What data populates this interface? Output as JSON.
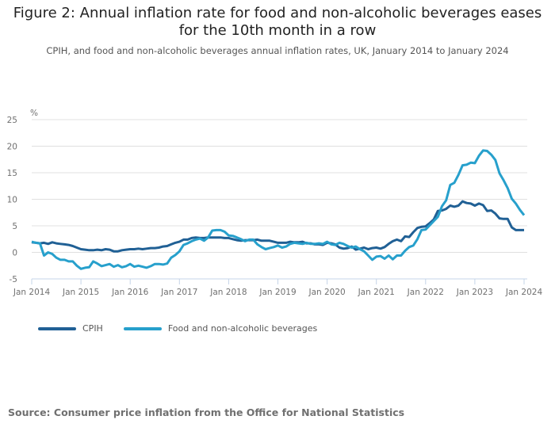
{
  "title_lines": [
    "Figure 2: Annual inflation rate for food and non-alcoholic beverages eases",
    "for the 10th month in a row"
  ],
  "subtitle": "CPIH, and food and non-alcoholic beverages annual inflation rates, UK, January 2014 to January 2024",
  "source": "Source: Consumer price inflation from the Office for National Statistics",
  "chart_data": {
    "type": "line",
    "title": "Figure 2: Annual inflation rate for food and non-alcoholic beverages eases for the 10th month in a row",
    "ylabel": "%",
    "xlabel": "",
    "ylim": [
      -5,
      25
    ],
    "yticks": [
      "25",
      "20",
      "15",
      "10",
      "5",
      "0",
      "-5"
    ],
    "ytick_values": [
      25,
      20,
      15,
      10,
      5,
      0,
      -5
    ],
    "xticks": [
      "Jan 2014",
      "Jan 2015",
      "Jan 2016",
      "Jan 2017",
      "Jan 2018",
      "Jan 2019",
      "Jan 2020",
      "Jan 2021",
      "Jan 2022",
      "Jan 2023",
      "Jan 2024"
    ],
    "x_start": "Jan 2014",
    "x_end": "Jan 2024",
    "grid": true,
    "legend_position": "bottom-left",
    "series": [
      {
        "name": "CPIH",
        "color": "#206095",
        "values": [
          1.9,
          1.8,
          1.7,
          1.8,
          1.6,
          1.9,
          1.7,
          1.6,
          1.5,
          1.4,
          1.2,
          0.9,
          0.6,
          0.5,
          0.4,
          0.4,
          0.5,
          0.4,
          0.6,
          0.5,
          0.2,
          0.2,
          0.4,
          0.5,
          0.6,
          0.6,
          0.7,
          0.6,
          0.7,
          0.8,
          0.8,
          0.9,
          1.1,
          1.2,
          1.5,
          1.8,
          2.0,
          2.4,
          2.4,
          2.7,
          2.8,
          2.7,
          2.7,
          2.8,
          2.8,
          2.8,
          2.8,
          2.7,
          2.7,
          2.5,
          2.3,
          2.2,
          2.3,
          2.3,
          2.3,
          2.4,
          2.2,
          2.2,
          2.2,
          2.0,
          1.8,
          1.8,
          1.8,
          2.0,
          1.9,
          1.9,
          2.0,
          1.7,
          1.7,
          1.5,
          1.5,
          1.4,
          1.8,
          1.7,
          1.5,
          0.9,
          0.7,
          0.8,
          1.1,
          0.5,
          0.7,
          0.9,
          0.6,
          0.8,
          0.9,
          0.7,
          1.0,
          1.6,
          2.1,
          2.4,
          2.1,
          3.0,
          2.9,
          3.8,
          4.6,
          4.8,
          4.9,
          5.5,
          6.2,
          7.8,
          7.9,
          8.2,
          8.8,
          8.6,
          8.8,
          9.6,
          9.3,
          9.2,
          8.8,
          9.2,
          8.9,
          7.8,
          7.9,
          7.3,
          6.4,
          6.3,
          6.3,
          4.7,
          4.2,
          4.2,
          4.2
        ]
      },
      {
        "name": "Food and non-alcoholic beverages",
        "color": "#27a0cc",
        "values": [
          2.0,
          1.8,
          1.7,
          -0.6,
          0.0,
          -0.3,
          -1.0,
          -1.4,
          -1.4,
          -1.7,
          -1.7,
          -2.5,
          -3.1,
          -2.9,
          -2.8,
          -1.7,
          -2.1,
          -2.6,
          -2.4,
          -2.2,
          -2.7,
          -2.4,
          -2.8,
          -2.6,
          -2.2,
          -2.7,
          -2.5,
          -2.7,
          -2.9,
          -2.6,
          -2.2,
          -2.2,
          -2.3,
          -2.1,
          -1.0,
          -0.5,
          0.2,
          1.4,
          1.7,
          2.1,
          2.4,
          2.6,
          2.2,
          2.8,
          4.1,
          4.2,
          4.2,
          3.9,
          3.2,
          3.1,
          2.8,
          2.5,
          2.1,
          2.4,
          2.4,
          1.5,
          1.0,
          0.6,
          0.8,
          1.0,
          1.3,
          0.9,
          1.1,
          1.6,
          1.8,
          1.7,
          1.6,
          1.8,
          1.6,
          1.6,
          1.7,
          1.6,
          2.0,
          1.5,
          1.4,
          1.8,
          1.6,
          1.2,
          0.9,
          1.1,
          0.6,
          0.2,
          -0.6,
          -1.4,
          -0.8,
          -0.7,
          -1.2,
          -0.6,
          -1.3,
          -0.6,
          -0.6,
          0.3,
          1.0,
          1.3,
          2.5,
          4.2,
          4.3,
          5.1,
          5.9,
          6.7,
          8.7,
          9.8,
          12.7,
          13.1,
          14.6,
          16.4,
          16.5,
          16.9,
          16.8,
          18.2,
          19.2,
          19.1,
          18.4,
          17.4,
          14.9,
          13.6,
          12.1,
          10.1,
          9.2,
          8.0,
          7.0
        ]
      }
    ]
  }
}
